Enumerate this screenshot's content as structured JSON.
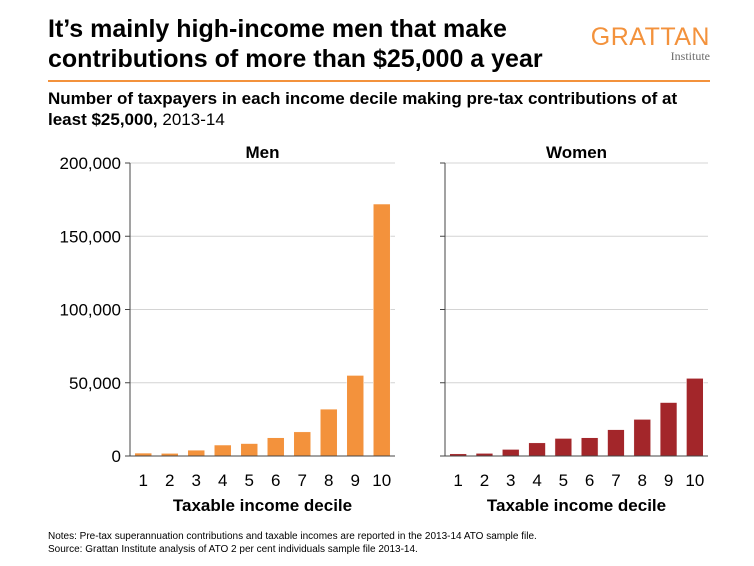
{
  "header": {
    "title": "It’s mainly high-income men that make contributions of more than $25,000 a year",
    "subtitle_bold": "Number of taxpayers in each income decile making pre-tax contributions of at least $25,000,",
    "subtitle_rest": " 2013-14"
  },
  "logo": {
    "main": "GRATTAN",
    "sub": "Institute",
    "color": "#f3923c"
  },
  "notes": {
    "line1": "Notes: Pre-tax superannuation contributions and taxable incomes are reported in the 2013-14 ATO sample file.",
    "line2": "Source: Grattan Institute analysis of ATO 2 per cent individuals sample file 2013-14."
  },
  "chart_data": [
    {
      "type": "bar",
      "title": "Men",
      "xlabel": "Taxable income decile",
      "ylabel": "",
      "categories": [
        "1",
        "2",
        "3",
        "4",
        "5",
        "6",
        "7",
        "8",
        "9",
        "10"
      ],
      "values": [
        2000,
        1800,
        4000,
        7500,
        8500,
        12500,
        16500,
        32000,
        55000,
        172000
      ],
      "ylim": [
        0,
        200000
      ],
      "yticks": [
        0,
        50000,
        100000,
        150000,
        200000
      ],
      "ytick_labels": [
        "0",
        "50,000",
        "100,000",
        "150,000",
        "200,000"
      ],
      "color": "#f3923c",
      "grid": true
    },
    {
      "type": "bar",
      "title": "Women",
      "xlabel": "Taxable income decile",
      "ylabel": "",
      "categories": [
        "1",
        "2",
        "3",
        "4",
        "5",
        "6",
        "7",
        "8",
        "9",
        "10"
      ],
      "values": [
        1500,
        1800,
        4500,
        9000,
        12000,
        12500,
        18000,
        25000,
        36500,
        53000
      ],
      "ylim": [
        0,
        200000
      ],
      "yticks": [
        0,
        50000,
        100000,
        150000,
        200000
      ],
      "color": "#a3262a",
      "grid": true
    }
  ]
}
